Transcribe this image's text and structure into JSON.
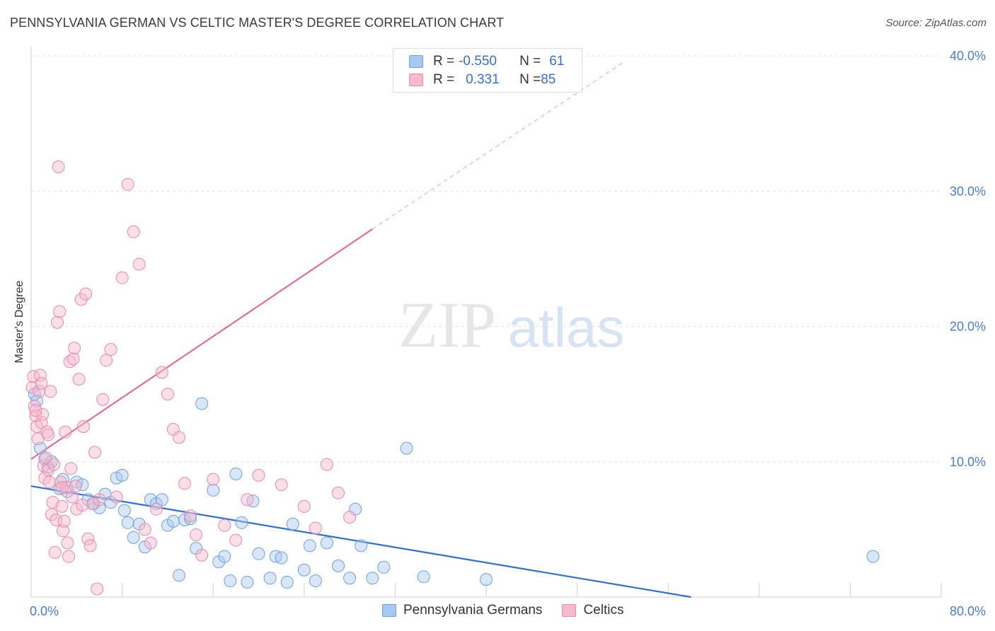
{
  "title": "PENNSYLVANIA GERMAN VS CELTIC MASTER'S DEGREE CORRELATION CHART",
  "source": "Source: ZipAtlas.com",
  "watermark": {
    "zip": "ZIP",
    "atlas": "atlas"
  },
  "legend": {
    "rows": [
      {
        "r_label": "R = ",
        "r_value": "-0.550",
        "n_label": "N = ",
        "n_value": "61",
        "color": "#a9c8f0",
        "border": "#6fa0dc"
      },
      {
        "r_label": "R = ",
        "r_value": "0.331",
        "n_label": "N = ",
        "n_value": "85",
        "color": "#f7b9cc",
        "border": "#e88aa8"
      }
    ]
  },
  "chart_data": {
    "type": "scatter",
    "title": "PENNSYLVANIA GERMAN VS CELTIC MASTER'S DEGREE CORRELATION CHART",
    "xlabel": "",
    "ylabel": "Master's Degree",
    "xlim": [
      0,
      80
    ],
    "ylim": [
      0,
      40
    ],
    "x_tick_labels": [
      "0.0%",
      "80.0%"
    ],
    "y_ticks": [
      10,
      20,
      30,
      40
    ],
    "y_tick_labels": [
      "10.0%",
      "20.0%",
      "30.0%",
      "40.0%"
    ],
    "grid": true,
    "legend_position": "bottom",
    "series": [
      {
        "name": "Pennsylvania Germans",
        "color": "#a9c8f0",
        "stroke": "#6fa0dc",
        "line_color": "#2f6fd1",
        "trend": {
          "x": [
            0,
            58
          ],
          "y": [
            8.2,
            0
          ]
        },
        "x": [
          0.3,
          0.5,
          0.8,
          1.2,
          1.5,
          1.8,
          2.5,
          2.8,
          3.2,
          4.0,
          4.5,
          5.0,
          5.5,
          6.0,
          6.5,
          7.0,
          7.5,
          8.0,
          8.2,
          8.5,
          9.0,
          9.5,
          10.0,
          10.5,
          11.0,
          11.5,
          12.0,
          12.5,
          13.0,
          13.5,
          14.0,
          14.5,
          15.0,
          16.0,
          16.5,
          17.0,
          17.5,
          18.0,
          18.5,
          19.0,
          19.5,
          20.0,
          21.0,
          21.5,
          22.0,
          22.5,
          23.0,
          24.0,
          24.5,
          25.0,
          26.0,
          27.0,
          28.0,
          28.5,
          29.0,
          30.0,
          31.0,
          33.0,
          34.5,
          40.0,
          74.0
        ],
        "y": [
          15.0,
          14.5,
          11.0,
          10.2,
          9.6,
          10.0,
          8.0,
          8.7,
          7.8,
          8.5,
          8.3,
          7.2,
          6.9,
          6.6,
          7.6,
          7.0,
          8.8,
          9.0,
          6.4,
          5.5,
          4.4,
          5.4,
          3.7,
          7.2,
          6.9,
          7.2,
          5.3,
          5.6,
          1.6,
          5.7,
          5.8,
          3.6,
          14.3,
          7.9,
          2.6,
          3.0,
          1.2,
          9.1,
          5.5,
          1.1,
          7.1,
          3.2,
          1.4,
          3.0,
          2.9,
          1.1,
          5.4,
          2.0,
          3.8,
          1.2,
          4.0,
          2.3,
          1.4,
          6.5,
          3.8,
          1.4,
          2.2,
          11.0,
          1.5,
          1.3,
          3.0
        ]
      },
      {
        "name": "Celtics",
        "color": "#f7b9cc",
        "stroke": "#e88aa8",
        "line_color": "#e06d96",
        "trend": {
          "x": [
            0,
            30
          ],
          "y": [
            10.2,
            27.2
          ]
        },
        "trend_ext": {
          "x": [
            30,
            52
          ],
          "y": [
            27.2,
            39.5
          ]
        },
        "x": [
          0.1,
          0.2,
          0.3,
          0.4,
          0.5,
          0.6,
          0.7,
          0.8,
          0.9,
          1.0,
          1.1,
          1.2,
          1.3,
          1.4,
          1.5,
          1.6,
          1.7,
          1.8,
          1.9,
          2.0,
          2.1,
          2.2,
          2.3,
          2.4,
          2.5,
          2.6,
          2.7,
          2.8,
          2.9,
          3.0,
          3.1,
          3.2,
          3.3,
          3.4,
          3.5,
          3.6,
          3.7,
          3.8,
          3.9,
          4.0,
          4.2,
          4.4,
          4.6,
          4.8,
          5.0,
          5.2,
          5.4,
          5.6,
          5.8,
          6.0,
          6.3,
          6.6,
          7.0,
          7.5,
          8.0,
          8.5,
          9.0,
          9.5,
          10.0,
          10.5,
          11.0,
          11.5,
          12.0,
          12.5,
          13.0,
          13.5,
          14.0,
          14.5,
          15.0,
          16.0,
          17.0,
          18.0,
          19.0,
          20.0,
          22.0,
          24.0,
          25.0,
          26.0,
          27.0,
          28.0,
          0.4,
          0.9,
          1.5,
          2.7,
          4.5
        ],
        "y": [
          15.5,
          16.3,
          14.1,
          13.4,
          12.6,
          11.7,
          15.2,
          16.4,
          12.9,
          13.5,
          9.7,
          8.8,
          10.3,
          12.2,
          9.4,
          8.5,
          15.2,
          6.1,
          7.0,
          9.8,
          3.3,
          5.7,
          20.3,
          31.8,
          21.1,
          8.5,
          6.7,
          4.9,
          5.6,
          12.2,
          8.1,
          4.0,
          3.0,
          17.4,
          9.5,
          7.4,
          17.6,
          18.4,
          8.2,
          6.5,
          16.1,
          22.0,
          12.6,
          22.4,
          4.3,
          3.8,
          6.9,
          10.7,
          0.6,
          7.2,
          14.6,
          17.5,
          18.3,
          7.4,
          23.6,
          30.5,
          27.0,
          24.6,
          5.0,
          4.0,
          6.5,
          16.6,
          15.0,
          12.4,
          11.8,
          8.4,
          6.0,
          4.6,
          3.1,
          8.7,
          5.3,
          4.2,
          7.2,
          9.0,
          8.3,
          6.7,
          5.1,
          9.8,
          7.7,
          5.9,
          13.8,
          15.8,
          12.0,
          8.1,
          6.8
        ]
      }
    ]
  }
}
